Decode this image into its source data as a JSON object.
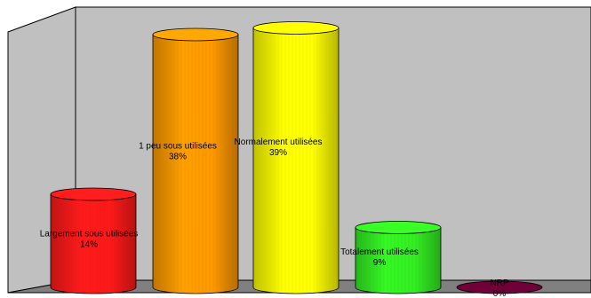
{
  "chart_data": {
    "type": "bar",
    "style": "3d-cylinder",
    "title": "",
    "xlabel": "",
    "ylabel": "",
    "ylim": [
      0,
      40
    ],
    "grid": false,
    "legend": "none",
    "wall_color": "#c0c0c0",
    "floor_color": "#808080",
    "categories": [
      "Largement sous utilisées",
      "1 peu sous utilisées",
      "Normalement utilisées",
      "Totalement utilisées",
      "NRP"
    ],
    "values": [
      14,
      38,
      39,
      9,
      0
    ],
    "value_labels": [
      "14%",
      "38%",
      "39%",
      "9%",
      "0%"
    ],
    "colors": [
      "#ff1a1a",
      "#ff9900",
      "#ffff00",
      "#33ee22",
      "#660033"
    ]
  }
}
